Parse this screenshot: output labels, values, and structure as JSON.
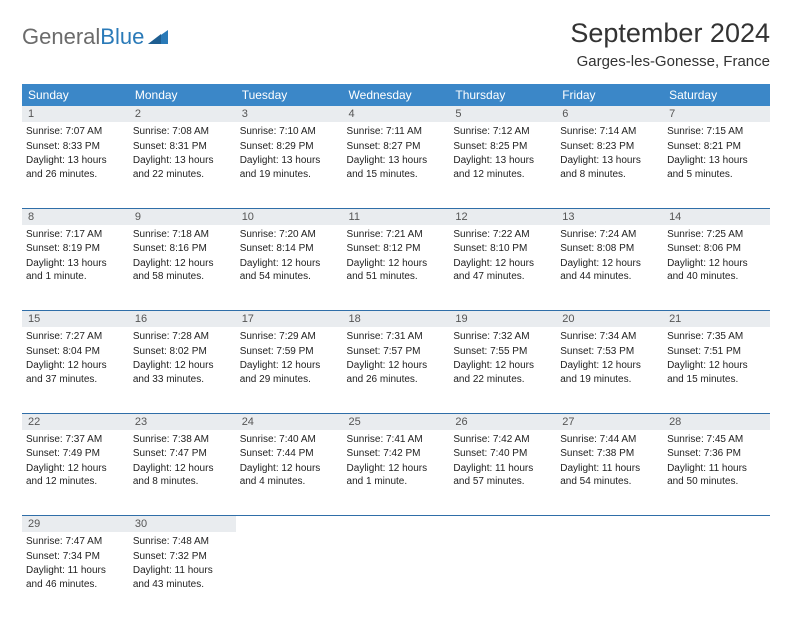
{
  "logo": {
    "part1": "General",
    "part2": "Blue"
  },
  "title": "September 2024",
  "location": "Garges-les-Gonesse, France",
  "colors": {
    "header_bg": "#3b87c8",
    "daynum_bg": "#e9ecef",
    "row_divider": "#2f6ea8",
    "logo_gray": "#6b6b6b",
    "logo_blue": "#2a7ab8"
  },
  "weekdays": [
    "Sunday",
    "Monday",
    "Tuesday",
    "Wednesday",
    "Thursday",
    "Friday",
    "Saturday"
  ],
  "weeks": [
    [
      {
        "n": "1",
        "sr": "7:07 AM",
        "ss": "8:33 PM",
        "dl": "13 hours and 26 minutes."
      },
      {
        "n": "2",
        "sr": "7:08 AM",
        "ss": "8:31 PM",
        "dl": "13 hours and 22 minutes."
      },
      {
        "n": "3",
        "sr": "7:10 AM",
        "ss": "8:29 PM",
        "dl": "13 hours and 19 minutes."
      },
      {
        "n": "4",
        "sr": "7:11 AM",
        "ss": "8:27 PM",
        "dl": "13 hours and 15 minutes."
      },
      {
        "n": "5",
        "sr": "7:12 AM",
        "ss": "8:25 PM",
        "dl": "13 hours and 12 minutes."
      },
      {
        "n": "6",
        "sr": "7:14 AM",
        "ss": "8:23 PM",
        "dl": "13 hours and 8 minutes."
      },
      {
        "n": "7",
        "sr": "7:15 AM",
        "ss": "8:21 PM",
        "dl": "13 hours and 5 minutes."
      }
    ],
    [
      {
        "n": "8",
        "sr": "7:17 AM",
        "ss": "8:19 PM",
        "dl": "13 hours and 1 minute."
      },
      {
        "n": "9",
        "sr": "7:18 AM",
        "ss": "8:16 PM",
        "dl": "12 hours and 58 minutes."
      },
      {
        "n": "10",
        "sr": "7:20 AM",
        "ss": "8:14 PM",
        "dl": "12 hours and 54 minutes."
      },
      {
        "n": "11",
        "sr": "7:21 AM",
        "ss": "8:12 PM",
        "dl": "12 hours and 51 minutes."
      },
      {
        "n": "12",
        "sr": "7:22 AM",
        "ss": "8:10 PM",
        "dl": "12 hours and 47 minutes."
      },
      {
        "n": "13",
        "sr": "7:24 AM",
        "ss": "8:08 PM",
        "dl": "12 hours and 44 minutes."
      },
      {
        "n": "14",
        "sr": "7:25 AM",
        "ss": "8:06 PM",
        "dl": "12 hours and 40 minutes."
      }
    ],
    [
      {
        "n": "15",
        "sr": "7:27 AM",
        "ss": "8:04 PM",
        "dl": "12 hours and 37 minutes."
      },
      {
        "n": "16",
        "sr": "7:28 AM",
        "ss": "8:02 PM",
        "dl": "12 hours and 33 minutes."
      },
      {
        "n": "17",
        "sr": "7:29 AM",
        "ss": "7:59 PM",
        "dl": "12 hours and 29 minutes."
      },
      {
        "n": "18",
        "sr": "7:31 AM",
        "ss": "7:57 PM",
        "dl": "12 hours and 26 minutes."
      },
      {
        "n": "19",
        "sr": "7:32 AM",
        "ss": "7:55 PM",
        "dl": "12 hours and 22 minutes."
      },
      {
        "n": "20",
        "sr": "7:34 AM",
        "ss": "7:53 PM",
        "dl": "12 hours and 19 minutes."
      },
      {
        "n": "21",
        "sr": "7:35 AM",
        "ss": "7:51 PM",
        "dl": "12 hours and 15 minutes."
      }
    ],
    [
      {
        "n": "22",
        "sr": "7:37 AM",
        "ss": "7:49 PM",
        "dl": "12 hours and 12 minutes."
      },
      {
        "n": "23",
        "sr": "7:38 AM",
        "ss": "7:47 PM",
        "dl": "12 hours and 8 minutes."
      },
      {
        "n": "24",
        "sr": "7:40 AM",
        "ss": "7:44 PM",
        "dl": "12 hours and 4 minutes."
      },
      {
        "n": "25",
        "sr": "7:41 AM",
        "ss": "7:42 PM",
        "dl": "12 hours and 1 minute."
      },
      {
        "n": "26",
        "sr": "7:42 AM",
        "ss": "7:40 PM",
        "dl": "11 hours and 57 minutes."
      },
      {
        "n": "27",
        "sr": "7:44 AM",
        "ss": "7:38 PM",
        "dl": "11 hours and 54 minutes."
      },
      {
        "n": "28",
        "sr": "7:45 AM",
        "ss": "7:36 PM",
        "dl": "11 hours and 50 minutes."
      }
    ],
    [
      {
        "n": "29",
        "sr": "7:47 AM",
        "ss": "7:34 PM",
        "dl": "11 hours and 46 minutes."
      },
      {
        "n": "30",
        "sr": "7:48 AM",
        "ss": "7:32 PM",
        "dl": "11 hours and 43 minutes."
      },
      null,
      null,
      null,
      null,
      null
    ]
  ],
  "labels": {
    "sunrise": "Sunrise:",
    "sunset": "Sunset:",
    "daylight": "Daylight:"
  }
}
